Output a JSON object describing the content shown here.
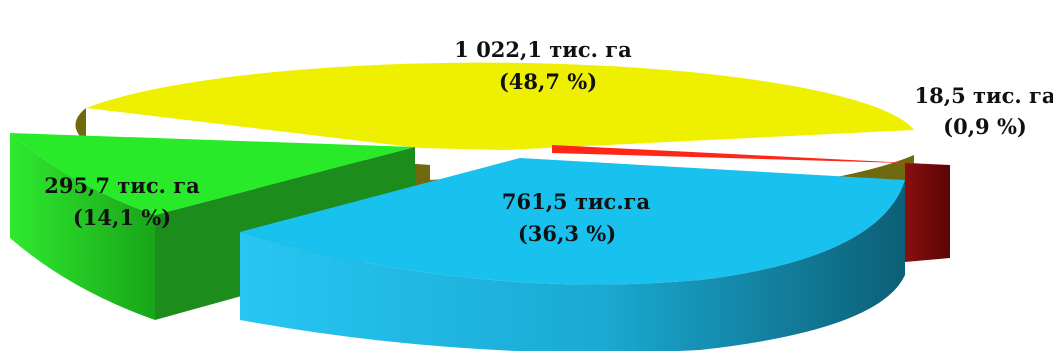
{
  "chart_data": {
    "type": "pie",
    "style": "3d-exploded",
    "title": "",
    "slices": [
      {
        "label_value": "1  022,1 тис. га",
        "label_percent": "(48,7 %)",
        "value": 1022.1,
        "percent": 48.7,
        "color": "#f0f000"
      },
      {
        "label_value": "18,5 тис. га",
        "label_percent": "(0,9 %)",
        "value": 18.5,
        "percent": 0.9,
        "color": "#ff2a1a"
      },
      {
        "label_value": "761,5 тис.га",
        "label_percent": "(36,3 %)",
        "value": 761.5,
        "percent": 36.3,
        "color": "#19c3f0"
      },
      {
        "label_value": "295,7 тис. га",
        "label_percent": "(14,1 %)",
        "value": 295.7,
        "percent": 14.1,
        "color": "#22ee22"
      }
    ]
  }
}
